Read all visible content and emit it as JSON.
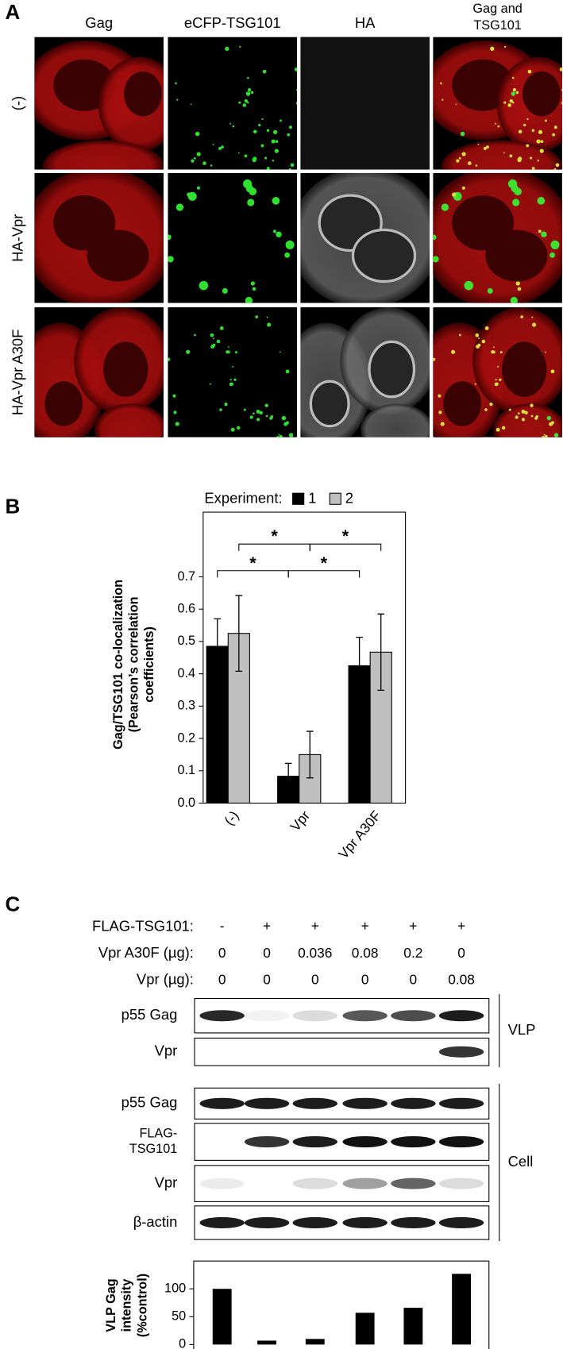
{
  "panel_a": {
    "label": "A",
    "columns": [
      [
        "Gag"
      ],
      [
        "eCFP-TSG101"
      ],
      [
        "HA"
      ],
      [
        "Gag and",
        "TSG101"
      ]
    ],
    "rows": [
      "(-)",
      "HA-Vpr",
      "HA-Vpr A30F"
    ]
  },
  "panel_b": {
    "label": "B",
    "significance": [
      "*",
      "*",
      "*",
      "*"
    ]
  },
  "chart_data": [
    {
      "type": "bar",
      "legend_title": "Experiment:",
      "y_label": [
        "Gag/TSG101 co-localization",
        "(Pearson’s correlation",
        "coefficients)"
      ],
      "categories": [
        "(-)",
        "Vpr",
        "Vpr A30F"
      ],
      "series": [
        {
          "name": "1",
          "color": "#000000",
          "values": [
            0.485,
            0.083,
            0.425
          ],
          "errors": [
            0.085,
            0.04,
            0.088
          ]
        },
        {
          "name": "2",
          "color": "#c0c0c0",
          "values": [
            0.525,
            0.15,
            0.467
          ],
          "errors": [
            0.117,
            0.072,
            0.118
          ]
        }
      ],
      "ylim": [
        0,
        0.9
      ],
      "yticks": [
        {
          "value": 0,
          "label": "0.0"
        },
        0.1,
        0.2,
        0.3,
        0.4,
        0.5,
        0.6,
        0.7
      ],
      "grid": false
    },
    {
      "type": "bar",
      "y_label": [
        "VLP Gag",
        "intensity",
        "(%control)"
      ],
      "values": [
        100,
        7,
        10,
        57,
        66,
        127
      ],
      "color": "#000000",
      "ylim": [
        0,
        150
      ],
      "yticks": [
        0,
        50,
        100
      ],
      "grid": false
    }
  ],
  "panel_c": {
    "label": "C",
    "conditions": [
      {
        "label": "FLAG-TSG101:",
        "values": [
          "-",
          "+",
          "+",
          "+",
          "+",
          "+"
        ]
      },
      {
        "label": "Vpr A30F (µg):",
        "values": [
          0,
          0,
          0.036,
          0.08,
          0.2,
          0
        ]
      },
      {
        "label": "Vpr (µg):",
        "values": [
          0,
          0,
          0,
          0,
          0,
          0.08
        ]
      }
    ],
    "fractions": [
      {
        "label": "VLP",
        "blots": [
          [
            "p55 Gag"
          ],
          [
            "Vpr"
          ]
        ]
      },
      {
        "label": "Cell",
        "blots": [
          [
            "p55 Gag"
          ],
          [
            "FLAG-",
            "TSG101"
          ],
          [
            "Vpr"
          ],
          [
            "β-actin"
          ]
        ]
      }
    ]
  }
}
